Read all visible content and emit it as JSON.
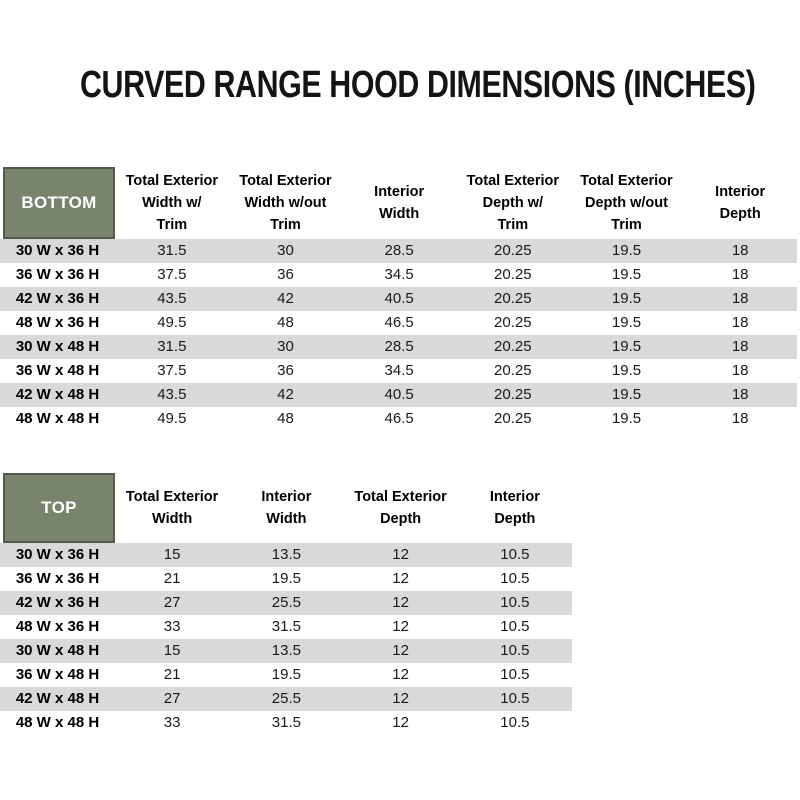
{
  "title": "CURVED RANGE HOOD DIMENSIONS (INCHES)",
  "colors": {
    "header_green": "#79846d",
    "header_green_border": "#53594c",
    "row_stripe": "#d9d9d9",
    "text": "#1a1a1a"
  },
  "tables": {
    "bottom": {
      "label": "BOTTOM",
      "columns": [
        "Total Exterior\nWidth w/\nTrim",
        "Total Exterior\nWidth w/out\nTrim",
        "Interior\nWidth",
        "Total Exterior\nDepth w/\nTrim",
        "Total Exterior\nDepth w/out\nTrim",
        "Interior\nDepth"
      ],
      "rows": [
        [
          "30 W x 36 H",
          "31.5",
          "30",
          "28.5",
          "20.25",
          "19.5",
          "18"
        ],
        [
          "36 W x 36 H",
          "37.5",
          "36",
          "34.5",
          "20.25",
          "19.5",
          "18"
        ],
        [
          "42 W x 36 H",
          "43.5",
          "42",
          "40.5",
          "20.25",
          "19.5",
          "18"
        ],
        [
          "48 W x 36 H",
          "49.5",
          "48",
          "46.5",
          "20.25",
          "19.5",
          "18"
        ],
        [
          "30 W x 48 H",
          "31.5",
          "30",
          "28.5",
          "20.25",
          "19.5",
          "18"
        ],
        [
          "36 W x 48 H",
          "37.5",
          "36",
          "34.5",
          "20.25",
          "19.5",
          "18"
        ],
        [
          "42 W x 48 H",
          "43.5",
          "42",
          "40.5",
          "20.25",
          "19.5",
          "18"
        ],
        [
          "48 W x 48 H",
          "49.5",
          "48",
          "46.5",
          "20.25",
          "19.5",
          "18"
        ]
      ]
    },
    "top": {
      "label": "TOP",
      "columns": [
        "Total Exterior\nWidth",
        "Interior\nWidth",
        "Total Exterior\nDepth",
        "Interior\nDepth"
      ],
      "rows": [
        [
          "30 W x 36 H",
          "15",
          "13.5",
          "12",
          "10.5"
        ],
        [
          "36 W x 36 H",
          "21",
          "19.5",
          "12",
          "10.5"
        ],
        [
          "42 W x 36 H",
          "27",
          "25.5",
          "12",
          "10.5"
        ],
        [
          "48 W x 36 H",
          "33",
          "31.5",
          "12",
          "10.5"
        ],
        [
          "30 W x 48 H",
          "15",
          "13.5",
          "12",
          "10.5"
        ],
        [
          "36 W x 48 H",
          "21",
          "19.5",
          "12",
          "10.5"
        ],
        [
          "42 W x 48 H",
          "27",
          "25.5",
          "12",
          "10.5"
        ],
        [
          "48 W x 48 H",
          "33",
          "31.5",
          "12",
          "10.5"
        ]
      ]
    }
  }
}
